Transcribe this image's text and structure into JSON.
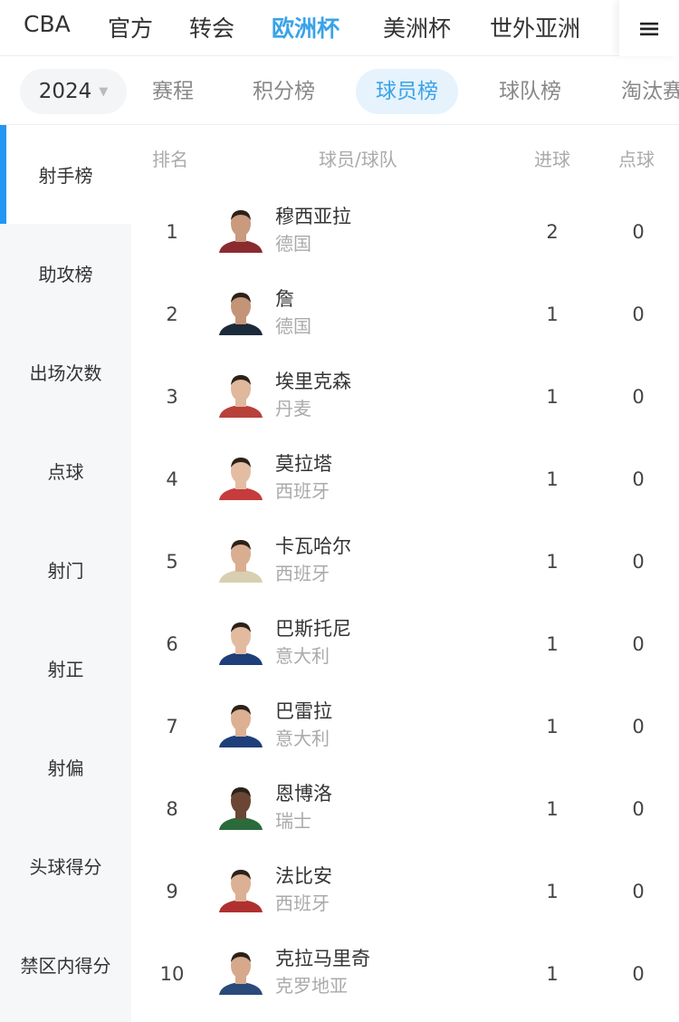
{
  "top_nav": {
    "items": [
      "CBA",
      "官方",
      "转会",
      "欧洲杯",
      "美洲杯",
      "世外亚洲"
    ],
    "active": "欧洲杯",
    "menu_icon": "≡"
  },
  "sub_nav": {
    "year": "2024",
    "tabs": [
      "赛程",
      "积分榜",
      "球员榜",
      "球队榜",
      "淘汰赛"
    ],
    "active": "球员榜"
  },
  "sidebar": {
    "items": [
      "射手榜",
      "助攻榜",
      "出场次数",
      "点球",
      "射门",
      "射正",
      "射偏",
      "头球得分",
      "禁区内得分"
    ],
    "active": "射手榜"
  },
  "table": {
    "headers": {
      "rank": "排名",
      "player": "球员/球队",
      "goals": "进球",
      "penalties": "点球"
    },
    "rows": [
      {
        "rank": "1",
        "name": "穆西亚拉",
        "team": "德国",
        "goals": "2",
        "penalties": "0"
      },
      {
        "rank": "2",
        "name": "詹",
        "team": "德国",
        "goals": "1",
        "penalties": "0"
      },
      {
        "rank": "3",
        "name": "埃里克森",
        "team": "丹麦",
        "goals": "1",
        "penalties": "0"
      },
      {
        "rank": "4",
        "name": "莫拉塔",
        "team": "西班牙",
        "goals": "1",
        "penalties": "0"
      },
      {
        "rank": "5",
        "name": "卡瓦哈尔",
        "team": "西班牙",
        "goals": "1",
        "penalties": "0"
      },
      {
        "rank": "6",
        "name": "巴斯托尼",
        "team": "意大利",
        "goals": "1",
        "penalties": "0"
      },
      {
        "rank": "7",
        "name": "巴雷拉",
        "team": "意大利",
        "goals": "1",
        "penalties": "0"
      },
      {
        "rank": "8",
        "name": "恩博洛",
        "team": "瑞士",
        "goals": "1",
        "penalties": "0"
      },
      {
        "rank": "9",
        "name": "法比安",
        "team": "西班牙",
        "goals": "1",
        "penalties": "0"
      },
      {
        "rank": "10",
        "name": "克拉马里奇",
        "team": "克罗地亚",
        "goals": "1",
        "penalties": "0"
      }
    ]
  },
  "colors": {
    "accent": "#3aa3e8",
    "sidebar_indicator": "#2196f3"
  }
}
